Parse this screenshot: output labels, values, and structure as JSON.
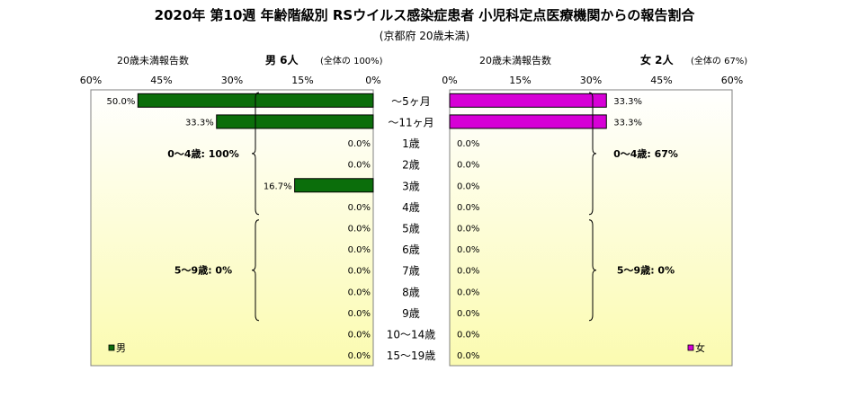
{
  "title": "2020年 第10週 年齢階級別 RSウイルス感染症患者 小児科定点医療機関からの報告割合",
  "subtitle": "(京都府 20歳未満)",
  "colors": {
    "male_bar": "#0b6e0b",
    "female_bar": "#d600d6",
    "plot_top": "#ffffff",
    "plot_bottom": "#fbfbb0",
    "frame": "#808080"
  },
  "chart_data": {
    "type": "bar",
    "categories": [
      "〜5ヶ月",
      "〜11ヶ月",
      "1歳",
      "2歳",
      "3歳",
      "4歳",
      "5歳",
      "6歳",
      "7歳",
      "8歳",
      "9歳",
      "10〜14歳",
      "15〜19歳"
    ],
    "x_ticks_left": [
      "60%",
      "45%",
      "30%",
      "15%",
      "0%"
    ],
    "x_ticks_right": [
      "0%",
      "15%",
      "30%",
      "45%",
      "60%"
    ],
    "xlim": [
      0,
      60
    ],
    "panels": {
      "male": {
        "header_label": "20歳未満報告数",
        "header_main": "男 6人",
        "header_note": "(全体の 100%)",
        "legend": "男",
        "values": [
          50.0,
          33.3,
          0.0,
          0.0,
          16.7,
          0.0,
          0.0,
          0.0,
          0.0,
          0.0,
          0.0,
          0.0,
          0.0
        ],
        "value_labels": [
          "50.0%",
          "33.3%",
          "0.0%",
          "0.0%",
          "16.7%",
          "0.0%",
          "0.0%",
          "0.0%",
          "0.0%",
          "0.0%",
          "0.0%",
          "0.0%",
          "0.0%"
        ],
        "groups": [
          {
            "label": "0〜4歳: 100%",
            "from": 0,
            "to": 5
          },
          {
            "label": "5〜9歳: 0%",
            "from": 6,
            "to": 10
          }
        ]
      },
      "female": {
        "header_label": "20歳未満報告数",
        "header_main": "女 2人",
        "header_note": "(全体の 67%)",
        "legend": "女",
        "values": [
          33.3,
          33.3,
          0.0,
          0.0,
          0.0,
          0.0,
          0.0,
          0.0,
          0.0,
          0.0,
          0.0,
          0.0,
          0.0
        ],
        "value_labels": [
          "33.3%",
          "33.3%",
          "0.0%",
          "0.0%",
          "0.0%",
          "0.0%",
          "0.0%",
          "0.0%",
          "0.0%",
          "0.0%",
          "0.0%",
          "0.0%",
          "0.0%"
        ],
        "groups": [
          {
            "label": "0〜4歳: 67%",
            "from": 0,
            "to": 5
          },
          {
            "label": "5〜9歳: 0%",
            "from": 6,
            "to": 10
          }
        ]
      }
    }
  }
}
